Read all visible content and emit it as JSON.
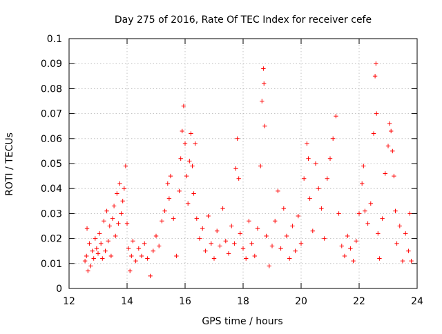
{
  "chart_data": {
    "type": "scatter",
    "title": "Day 275 of 2016, Rate Of TEC Index for receiver cefe",
    "xlabel": "GPS time / hours",
    "ylabel": "ROTI / TECUs",
    "xlim": [
      12,
      24
    ],
    "ylim": [
      0,
      0.1
    ],
    "x_ticks": [
      12,
      14,
      16,
      18,
      20,
      22,
      24
    ],
    "y_ticks": [
      0,
      0.01,
      0.02,
      0.03,
      0.04,
      0.05,
      0.06,
      0.07,
      0.08,
      0.09,
      0.1
    ],
    "x_tick_labels": [
      "12",
      "14",
      "16",
      "18",
      "20",
      "22",
      "24"
    ],
    "y_tick_labels": [
      "0",
      "0.01",
      "0.02",
      "0.03",
      "0.04",
      "0.05",
      "0.06",
      "0.07",
      "0.08",
      "0.09",
      "0.1"
    ],
    "grid": true,
    "marker": "+",
    "series": [
      {
        "name": "ROTI",
        "color": "#ff0000",
        "points": [
          [
            12.55,
            0.011
          ],
          [
            12.6,
            0.013
          ],
          [
            12.62,
            0.024
          ],
          [
            12.65,
            0.007
          ],
          [
            12.7,
            0.018
          ],
          [
            12.75,
            0.009
          ],
          [
            12.8,
            0.015
          ],
          [
            12.85,
            0.012
          ],
          [
            12.9,
            0.02
          ],
          [
            12.95,
            0.016
          ],
          [
            13.0,
            0.014
          ],
          [
            13.05,
            0.022
          ],
          [
            13.1,
            0.018
          ],
          [
            13.15,
            0.012
          ],
          [
            13.2,
            0.027
          ],
          [
            13.25,
            0.015
          ],
          [
            13.3,
            0.031
          ],
          [
            13.35,
            0.019
          ],
          [
            13.4,
            0.025
          ],
          [
            13.45,
            0.013
          ],
          [
            13.5,
            0.028
          ],
          [
            13.55,
            0.033
          ],
          [
            13.6,
            0.021
          ],
          [
            13.65,
            0.038
          ],
          [
            13.7,
            0.026
          ],
          [
            13.75,
            0.042
          ],
          [
            13.8,
            0.03
          ],
          [
            13.85,
            0.035
          ],
          [
            13.9,
            0.04
          ],
          [
            13.95,
            0.049
          ],
          [
            14.0,
            0.026
          ],
          [
            14.05,
            0.016
          ],
          [
            14.1,
            0.007
          ],
          [
            14.15,
            0.013
          ],
          [
            14.2,
            0.019
          ],
          [
            14.3,
            0.011
          ],
          [
            14.4,
            0.016
          ],
          [
            14.5,
            0.013
          ],
          [
            14.6,
            0.018
          ],
          [
            14.7,
            0.012
          ],
          [
            14.8,
            0.005
          ],
          [
            14.9,
            0.015
          ],
          [
            15.0,
            0.021
          ],
          [
            15.1,
            0.017
          ],
          [
            15.2,
            0.027
          ],
          [
            15.3,
            0.031
          ],
          [
            15.4,
            0.042
          ],
          [
            15.45,
            0.036
          ],
          [
            15.5,
            0.045
          ],
          [
            15.6,
            0.028
          ],
          [
            15.7,
            0.013
          ],
          [
            15.8,
            0.039
          ],
          [
            15.85,
            0.052
          ],
          [
            15.9,
            0.063
          ],
          [
            15.95,
            0.073
          ],
          [
            16.0,
            0.058
          ],
          [
            16.05,
            0.045
          ],
          [
            16.1,
            0.034
          ],
          [
            16.15,
            0.051
          ],
          [
            16.2,
            0.062
          ],
          [
            16.25,
            0.049
          ],
          [
            16.3,
            0.038
          ],
          [
            16.35,
            0.058
          ],
          [
            16.4,
            0.028
          ],
          [
            16.5,
            0.02
          ],
          [
            16.6,
            0.024
          ],
          [
            16.7,
            0.015
          ],
          [
            16.8,
            0.029
          ],
          [
            16.9,
            0.018
          ],
          [
            17.0,
            0.012
          ],
          [
            17.1,
            0.023
          ],
          [
            17.2,
            0.017
          ],
          [
            17.3,
            0.032
          ],
          [
            17.4,
            0.019
          ],
          [
            17.5,
            0.014
          ],
          [
            17.6,
            0.025
          ],
          [
            17.7,
            0.018
          ],
          [
            17.75,
            0.048
          ],
          [
            17.8,
            0.06
          ],
          [
            17.85,
            0.044
          ],
          [
            17.9,
            0.022
          ],
          [
            18.0,
            0.016
          ],
          [
            18.1,
            0.012
          ],
          [
            18.2,
            0.027
          ],
          [
            18.3,
            0.018
          ],
          [
            18.4,
            0.013
          ],
          [
            18.5,
            0.024
          ],
          [
            18.6,
            0.049
          ],
          [
            18.65,
            0.075
          ],
          [
            18.7,
            0.088
          ],
          [
            18.72,
            0.082
          ],
          [
            18.75,
            0.065
          ],
          [
            18.8,
            0.021
          ],
          [
            18.9,
            0.009
          ],
          [
            19.0,
            0.017
          ],
          [
            19.1,
            0.027
          ],
          [
            19.2,
            0.039
          ],
          [
            19.3,
            0.016
          ],
          [
            19.4,
            0.032
          ],
          [
            19.5,
            0.021
          ],
          [
            19.6,
            0.012
          ],
          [
            19.7,
            0.025
          ],
          [
            19.8,
            0.015
          ],
          [
            19.9,
            0.029
          ],
          [
            20.0,
            0.018
          ],
          [
            20.1,
            0.044
          ],
          [
            20.2,
            0.058
          ],
          [
            20.25,
            0.052
          ],
          [
            20.3,
            0.036
          ],
          [
            20.4,
            0.023
          ],
          [
            20.5,
            0.05
          ],
          [
            20.6,
            0.04
          ],
          [
            20.7,
            0.032
          ],
          [
            20.8,
            0.02
          ],
          [
            20.9,
            0.044
          ],
          [
            21.0,
            0.052
          ],
          [
            21.1,
            0.06
          ],
          [
            21.2,
            0.069
          ],
          [
            21.3,
            0.03
          ],
          [
            21.4,
            0.017
          ],
          [
            21.5,
            0.013
          ],
          [
            21.6,
            0.021
          ],
          [
            21.7,
            0.016
          ],
          [
            21.8,
            0.011
          ],
          [
            21.9,
            0.019
          ],
          [
            22.0,
            0.03
          ],
          [
            22.1,
            0.042
          ],
          [
            22.15,
            0.049
          ],
          [
            22.2,
            0.031
          ],
          [
            22.3,
            0.026
          ],
          [
            22.4,
            0.034
          ],
          [
            22.5,
            0.062
          ],
          [
            22.55,
            0.085
          ],
          [
            22.58,
            0.09
          ],
          [
            22.6,
            0.07
          ],
          [
            22.65,
            0.022
          ],
          [
            22.7,
            0.012
          ],
          [
            22.8,
            0.028
          ],
          [
            22.9,
            0.046
          ],
          [
            23.0,
            0.057
          ],
          [
            23.05,
            0.066
          ],
          [
            23.1,
            0.063
          ],
          [
            23.15,
            0.055
          ],
          [
            23.2,
            0.045
          ],
          [
            23.25,
            0.031
          ],
          [
            23.3,
            0.018
          ],
          [
            23.4,
            0.025
          ],
          [
            23.5,
            0.011
          ],
          [
            23.6,
            0.022
          ],
          [
            23.7,
            0.015
          ],
          [
            23.75,
            0.03
          ],
          [
            23.8,
            0.011
          ]
        ]
      }
    ]
  }
}
